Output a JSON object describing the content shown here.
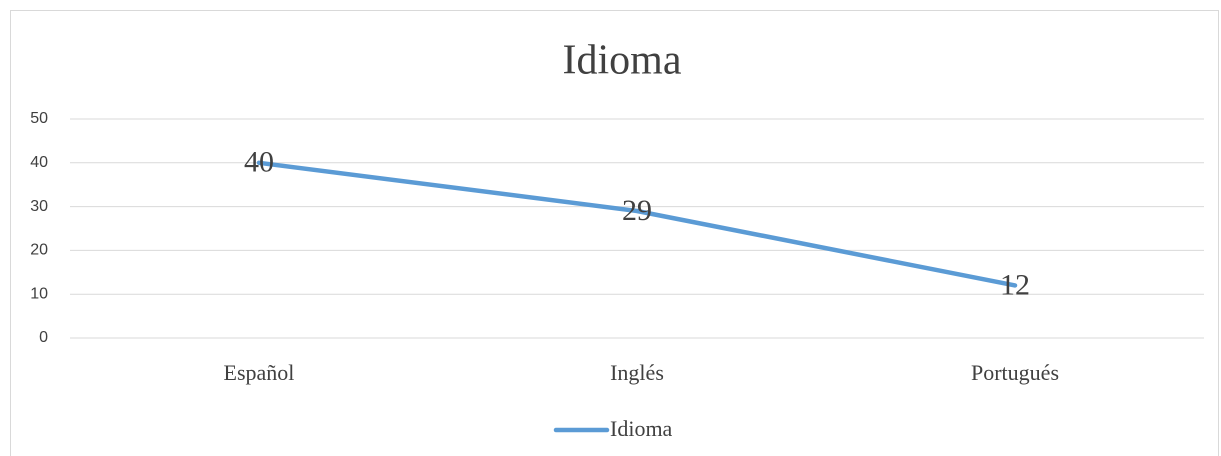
{
  "chart_data": {
    "type": "line",
    "title": "Idioma",
    "categories": [
      "Español",
      "Inglés",
      "Portugués"
    ],
    "series": [
      {
        "name": "Idioma",
        "color": "#5b9bd5",
        "values": [
          40,
          29,
          12
        ]
      }
    ],
    "ylim": [
      0,
      50
    ],
    "yticks": [
      0,
      10,
      20,
      30,
      40,
      50
    ],
    "grid": true,
    "legend": "bottom"
  }
}
